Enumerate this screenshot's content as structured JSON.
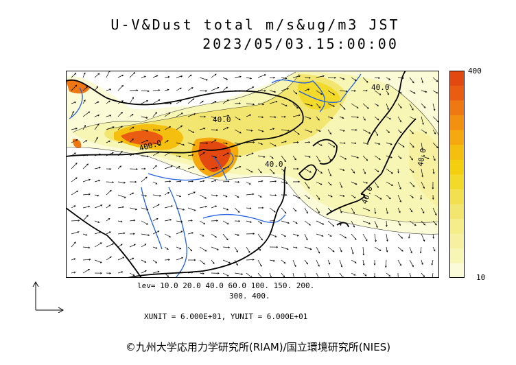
{
  "header": {
    "title": "U-V&Dust total m/s&ug/m3 JST",
    "datetime": "2023/05/03.15:00:00"
  },
  "colorbar": {
    "max_label": "400",
    "min_label": "10",
    "colors": [
      "#fbfbd7",
      "#f8f6b5",
      "#f7f0a0",
      "#f5ec8a",
      "#f3e670",
      "#f3e04e",
      "#f3d92a",
      "#f3cf10",
      "#f5bf10",
      "#f5a90e",
      "#f4900f",
      "#f07812",
      "#ea5c12",
      "#e24810"
    ]
  },
  "map": {
    "contour_labels": [
      "40.0",
      "40.0",
      "40.0",
      "40.0",
      "40.0",
      "400.0"
    ]
  },
  "footer": {
    "levels_line1": "lev= 10.0 20.0 40.0 60.0 100. 150. 200.",
    "levels_line2": "300. 400.",
    "units": "XUNIT = 6.000E+01, YUNIT = 6.000E+01",
    "copyright": "©九州大学応用力学研究所(RIAM)/国立環境研究所(NIES)"
  }
}
